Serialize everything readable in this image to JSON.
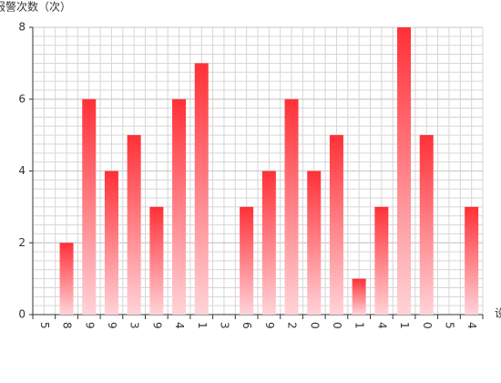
{
  "chart_data": {
    "type": "bar",
    "y_label": "报警次数（次）",
    "x_label": "设备",
    "categories": [
      "5",
      "8",
      "9",
      "9",
      "3",
      "9",
      "4",
      "1",
      "3",
      "6",
      "9",
      "2",
      "0",
      "0",
      "1",
      "4",
      "1",
      "0",
      "5",
      "4"
    ],
    "values": [
      0,
      2,
      6,
      4,
      5,
      3,
      6,
      7,
      0,
      3,
      4,
      6,
      4,
      5,
      1,
      3,
      8,
      5,
      0,
      3
    ],
    "gradient": [
      "#ff3037",
      "#ffd3d8"
    ],
    "ylim": [
      0,
      8
    ],
    "yticks": [
      0,
      2,
      4,
      6,
      8
    ],
    "grid": true
  }
}
